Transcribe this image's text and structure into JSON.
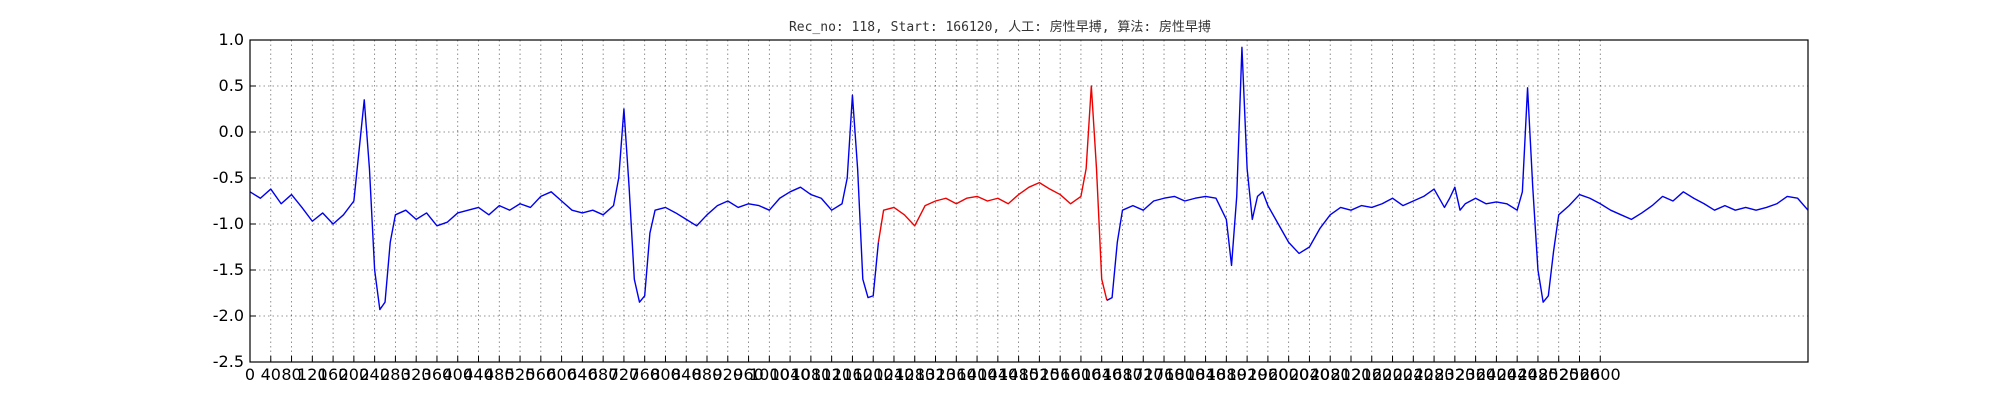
{
  "chart_data": {
    "type": "line",
    "title": "Rec_no: 118, Start: 166120, 人工: 房性早搏, 算法: 房性早搏",
    "xlabel": "",
    "ylabel": "",
    "xlim": [
      0,
      3000
    ],
    "ylim": [
      -2.5,
      1.0
    ],
    "grid": true,
    "yticks": [
      1.0,
      0.5,
      0.0,
      -0.5,
      -1.0,
      -1.5,
      -2.0,
      -2.5
    ],
    "ytick_labels": [
      "1.0",
      "0.5",
      "0.0",
      "-0.5",
      "-1.0",
      "-1.5",
      "-2.0",
      "-2.5"
    ],
    "xtick_step": 40,
    "xtick_max": 2600,
    "colors": {
      "normal": "#0000ee",
      "highlight": "#ee0000"
    },
    "highlight_range": [
      1220,
      1650
    ],
    "series": [
      {
        "points": [
          [
            0,
            -0.65
          ],
          [
            20,
            -0.72
          ],
          [
            40,
            -0.62
          ],
          [
            60,
            -0.78
          ],
          [
            80,
            -0.68
          ],
          [
            100,
            -0.82
          ],
          [
            120,
            -0.97
          ],
          [
            140,
            -0.88
          ],
          [
            160,
            -1.0
          ],
          [
            180,
            -0.9
          ],
          [
            200,
            -0.75
          ],
          [
            210,
            -0.2
          ],
          [
            220,
            0.35
          ],
          [
            230,
            -0.4
          ],
          [
            240,
            -1.5
          ],
          [
            250,
            -1.93
          ],
          [
            260,
            -1.85
          ],
          [
            270,
            -1.2
          ],
          [
            280,
            -0.9
          ],
          [
            300,
            -0.85
          ],
          [
            320,
            -0.95
          ],
          [
            340,
            -0.88
          ],
          [
            360,
            -1.02
          ],
          [
            380,
            -0.98
          ],
          [
            400,
            -0.88
          ],
          [
            420,
            -0.85
          ],
          [
            440,
            -0.82
          ],
          [
            460,
            -0.9
          ],
          [
            480,
            -0.8
          ],
          [
            500,
            -0.85
          ],
          [
            520,
            -0.78
          ],
          [
            540,
            -0.82
          ],
          [
            560,
            -0.7
          ],
          [
            580,
            -0.65
          ],
          [
            600,
            -0.75
          ],
          [
            620,
            -0.85
          ],
          [
            640,
            -0.88
          ],
          [
            660,
            -0.85
          ],
          [
            680,
            -0.9
          ],
          [
            700,
            -0.8
          ],
          [
            710,
            -0.5
          ],
          [
            720,
            0.25
          ],
          [
            730,
            -0.6
          ],
          [
            740,
            -1.6
          ],
          [
            750,
            -1.85
          ],
          [
            760,
            -1.78
          ],
          [
            770,
            -1.1
          ],
          [
            780,
            -0.85
          ],
          [
            800,
            -0.82
          ],
          [
            820,
            -0.88
          ],
          [
            840,
            -0.95
          ],
          [
            860,
            -1.02
          ],
          [
            880,
            -0.9
          ],
          [
            900,
            -0.8
          ],
          [
            920,
            -0.75
          ],
          [
            940,
            -0.82
          ],
          [
            960,
            -0.78
          ],
          [
            980,
            -0.8
          ],
          [
            1000,
            -0.85
          ],
          [
            1020,
            -0.72
          ],
          [
            1040,
            -0.65
          ],
          [
            1060,
            -0.6
          ],
          [
            1080,
            -0.68
          ],
          [
            1100,
            -0.72
          ],
          [
            1120,
            -0.85
          ],
          [
            1140,
            -0.78
          ],
          [
            1150,
            -0.5
          ],
          [
            1160,
            0.4
          ],
          [
            1170,
            -0.4
          ],
          [
            1180,
            -1.6
          ],
          [
            1190,
            -1.8
          ],
          [
            1200,
            -1.78
          ],
          [
            1210,
            -1.2
          ],
          [
            1220,
            -0.85
          ],
          [
            1240,
            -0.82
          ],
          [
            1260,
            -0.9
          ],
          [
            1280,
            -1.02
          ],
          [
            1300,
            -0.8
          ],
          [
            1320,
            -0.75
          ],
          [
            1340,
            -0.72
          ],
          [
            1360,
            -0.78
          ],
          [
            1380,
            -0.72
          ],
          [
            1400,
            -0.7
          ],
          [
            1420,
            -0.75
          ],
          [
            1440,
            -0.72
          ],
          [
            1460,
            -0.78
          ],
          [
            1480,
            -0.68
          ],
          [
            1500,
            -0.6
          ],
          [
            1520,
            -0.55
          ],
          [
            1540,
            -0.62
          ],
          [
            1560,
            -0.68
          ],
          [
            1580,
            -0.78
          ],
          [
            1600,
            -0.7
          ],
          [
            1610,
            -0.4
          ],
          [
            1620,
            0.5
          ],
          [
            1630,
            -0.4
          ],
          [
            1640,
            -1.6
          ],
          [
            1650,
            -1.83
          ],
          [
            1660,
            -1.8
          ],
          [
            1670,
            -1.2
          ],
          [
            1680,
            -0.85
          ],
          [
            1700,
            -0.8
          ],
          [
            1720,
            -0.85
          ],
          [
            1740,
            -0.75
          ],
          [
            1760,
            -0.72
          ],
          [
            1780,
            -0.7
          ],
          [
            1800,
            -0.75
          ],
          [
            1820,
            -0.72
          ],
          [
            1840,
            -0.7
          ],
          [
            1860,
            -0.72
          ],
          [
            1880,
            -0.95
          ],
          [
            1890,
            -1.45
          ],
          [
            1900,
            -0.7
          ],
          [
            1910,
            0.92
          ],
          [
            1920,
            -0.4
          ],
          [
            1930,
            -0.95
          ],
          [
            1940,
            -0.7
          ],
          [
            1950,
            -0.65
          ],
          [
            1960,
            -0.8
          ],
          [
            1980,
            -1.0
          ],
          [
            2000,
            -1.2
          ],
          [
            2020,
            -1.32
          ],
          [
            2040,
            -1.25
          ],
          [
            2060,
            -1.05
          ],
          [
            2080,
            -0.9
          ],
          [
            2100,
            -0.82
          ],
          [
            2120,
            -0.85
          ],
          [
            2140,
            -0.8
          ],
          [
            2160,
            -0.82
          ],
          [
            2180,
            -0.78
          ],
          [
            2200,
            -0.72
          ],
          [
            2220,
            -0.8
          ],
          [
            2240,
            -0.75
          ],
          [
            2260,
            -0.7
          ],
          [
            2280,
            -0.62
          ],
          [
            2300,
            -0.82
          ],
          [
            2310,
            -0.72
          ],
          [
            2320,
            -0.6
          ],
          [
            2330,
            -0.85
          ],
          [
            2340,
            -0.78
          ],
          [
            2360,
            -0.72
          ],
          [
            2380,
            -0.78
          ],
          [
            2400,
            -0.76
          ],
          [
            2420,
            -0.78
          ],
          [
            2440,
            -0.85
          ],
          [
            2450,
            -0.65
          ],
          [
            2460,
            0.48
          ],
          [
            2470,
            -0.6
          ],
          [
            2480,
            -1.5
          ],
          [
            2490,
            -1.85
          ],
          [
            2500,
            -1.78
          ],
          [
            2510,
            -1.3
          ],
          [
            2520,
            -0.9
          ],
          [
            2540,
            -0.8
          ],
          [
            2560,
            -0.68
          ],
          [
            2580,
            -0.72
          ],
          [
            2600,
            -0.78
          ],
          [
            2620,
            -0.85
          ],
          [
            2640,
            -0.9
          ],
          [
            2660,
            -0.95
          ],
          [
            2680,
            -0.88
          ],
          [
            2700,
            -0.8
          ],
          [
            2720,
            -0.7
          ],
          [
            2740,
            -0.75
          ],
          [
            2760,
            -0.65
          ],
          [
            2780,
            -0.72
          ],
          [
            2800,
            -0.78
          ],
          [
            2820,
            -0.85
          ],
          [
            2840,
            -0.8
          ],
          [
            2860,
            -0.85
          ],
          [
            2880,
            -0.82
          ],
          [
            2900,
            -0.85
          ],
          [
            2920,
            -0.82
          ],
          [
            2940,
            -0.78
          ],
          [
            2960,
            -0.7
          ],
          [
            2980,
            -0.72
          ],
          [
            3000,
            -0.85
          ]
        ]
      }
    ]
  }
}
